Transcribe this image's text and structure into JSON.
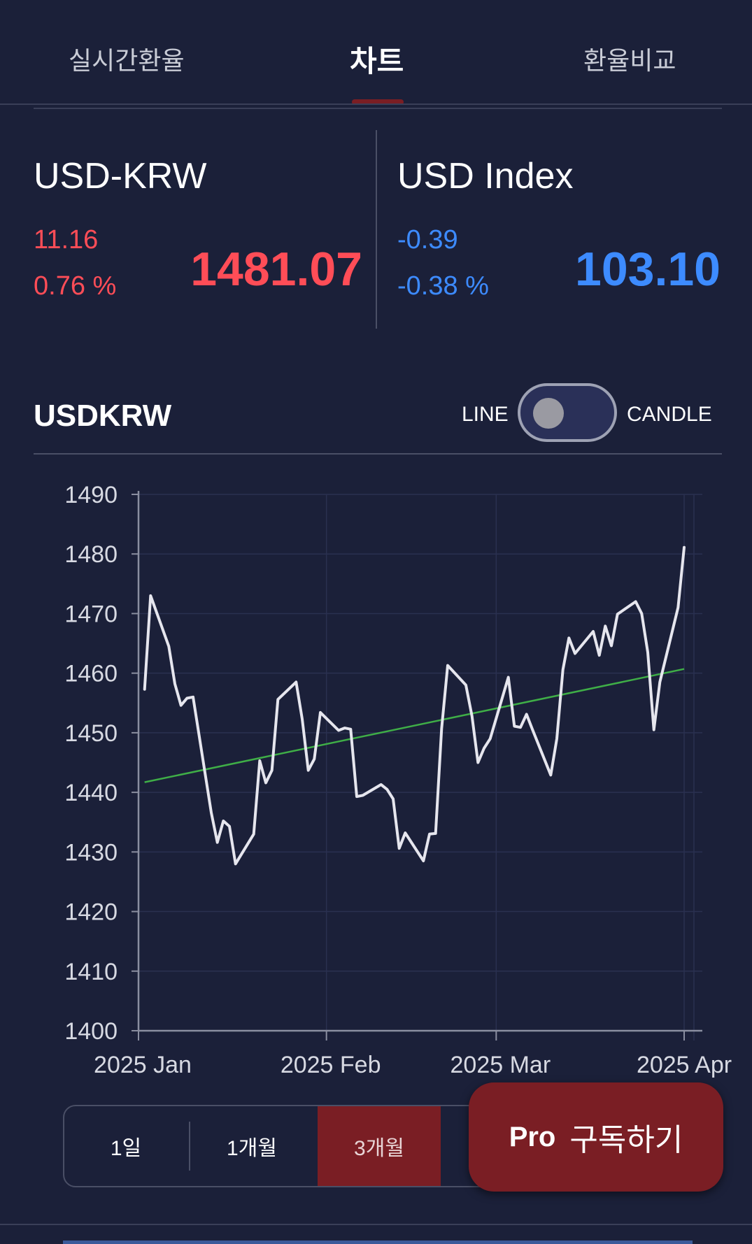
{
  "tabs": [
    {
      "label": "실시간환율"
    },
    {
      "label": "차트"
    },
    {
      "label": "환율비교"
    }
  ],
  "quotes": {
    "left": {
      "name": "USD-KRW",
      "change": "11.16",
      "change_pct": "0.76 %",
      "price": "1481.07"
    },
    "right": {
      "name": "USD Index",
      "change": "-0.39",
      "change_pct": "-0.38 %",
      "price": "103.10"
    }
  },
  "chart_header": {
    "title": "USDKRW",
    "toggle_left": "LINE",
    "toggle_right": "CANDLE"
  },
  "colors": {
    "up": "#ff4d57",
    "down": "#3d8bff",
    "line": "#e6e6ee",
    "trend": "#3fae47",
    "accent": "#7a1e24"
  },
  "chart_data": {
    "type": "line",
    "title": "",
    "xlabel": "",
    "ylabel": "",
    "ylim": [
      1400,
      1490
    ],
    "yticks": [
      1400,
      1410,
      1420,
      1430,
      1440,
      1450,
      1460,
      1470,
      1480,
      1490
    ],
    "xticks": [
      "2025 Jan",
      "2025 Feb",
      "2025 Mar",
      "2025 Apr"
    ],
    "x_range": [
      "2025-01-01",
      "2025-04-04"
    ],
    "series": [
      {
        "style": "line",
        "points": [
          [
            "2025-01-02",
            1457.3
          ],
          [
            "2025-01-03",
            1473.0
          ],
          [
            "2025-01-06",
            1464.5
          ],
          [
            "2025-01-07",
            1458.2
          ],
          [
            "2025-01-08",
            1454.6
          ],
          [
            "2025-01-09",
            1455.8
          ],
          [
            "2025-01-10",
            1456.0
          ],
          [
            "2025-01-13",
            1436.6
          ],
          [
            "2025-01-14",
            1431.6
          ],
          [
            "2025-01-15",
            1435.2
          ],
          [
            "2025-01-16",
            1434.3
          ],
          [
            "2025-01-17",
            1428.0
          ],
          [
            "2025-01-20",
            1433.0
          ],
          [
            "2025-01-21",
            1445.3
          ],
          [
            "2025-01-22",
            1441.6
          ],
          [
            "2025-01-23",
            1443.7
          ],
          [
            "2025-01-24",
            1455.6
          ],
          [
            "2025-01-27",
            1458.5
          ],
          [
            "2025-01-28",
            1452.3
          ],
          [
            "2025-01-29",
            1443.7
          ],
          [
            "2025-01-30",
            1445.6
          ],
          [
            "2025-01-31",
            1453.4
          ],
          [
            "2025-02-03",
            1450.4
          ],
          [
            "2025-02-04",
            1450.8
          ],
          [
            "2025-02-05",
            1450.6
          ],
          [
            "2025-02-06",
            1439.3
          ],
          [
            "2025-02-07",
            1439.5
          ],
          [
            "2025-02-10",
            1441.3
          ],
          [
            "2025-02-11",
            1440.5
          ],
          [
            "2025-02-12",
            1438.9
          ],
          [
            "2025-02-13",
            1430.6
          ],
          [
            "2025-02-14",
            1433.2
          ],
          [
            "2025-02-17",
            1428.5
          ],
          [
            "2025-02-18",
            1433.0
          ],
          [
            "2025-02-19",
            1433.1
          ],
          [
            "2025-02-20",
            1450.7
          ],
          [
            "2025-02-21",
            1461.3
          ],
          [
            "2025-02-24",
            1458.0
          ],
          [
            "2025-02-25",
            1452.8
          ],
          [
            "2025-02-26",
            1445.0
          ],
          [
            "2025-02-27",
            1447.4
          ],
          [
            "2025-02-28",
            1449.0
          ],
          [
            "2025-03-03",
            1459.3
          ],
          [
            "2025-03-04",
            1451.1
          ],
          [
            "2025-03-05",
            1450.9
          ],
          [
            "2025-03-06",
            1453.1
          ],
          [
            "2025-03-07",
            1450.5
          ],
          [
            "2025-03-10",
            1442.9
          ],
          [
            "2025-03-11",
            1449.0
          ],
          [
            "2025-03-12",
            1460.6
          ],
          [
            "2025-03-13",
            1465.9
          ],
          [
            "2025-03-14",
            1463.3
          ],
          [
            "2025-03-17",
            1467.0
          ],
          [
            "2025-03-18",
            1463.0
          ],
          [
            "2025-03-19",
            1467.9
          ],
          [
            "2025-03-20",
            1464.6
          ],
          [
            "2025-03-21",
            1469.9
          ],
          [
            "2025-03-24",
            1472.0
          ],
          [
            "2025-03-25",
            1470.0
          ],
          [
            "2025-03-26",
            1463.5
          ],
          [
            "2025-03-27",
            1450.5
          ],
          [
            "2025-03-28",
            1458.5
          ],
          [
            "2025-03-31",
            1471.0
          ],
          [
            "2025-04-01",
            1481.1
          ]
        ]
      },
      {
        "style": "trend",
        "points": [
          [
            "2025-01-02",
            1441.7
          ],
          [
            "2025-04-01",
            1460.7
          ]
        ]
      }
    ]
  },
  "periods": [
    {
      "label": "1일",
      "active": false
    },
    {
      "label": "1개월",
      "active": false
    },
    {
      "label": "3개월",
      "active": true
    }
  ],
  "pro_button": {
    "label1": "Pro",
    "label2": "구독하기"
  }
}
